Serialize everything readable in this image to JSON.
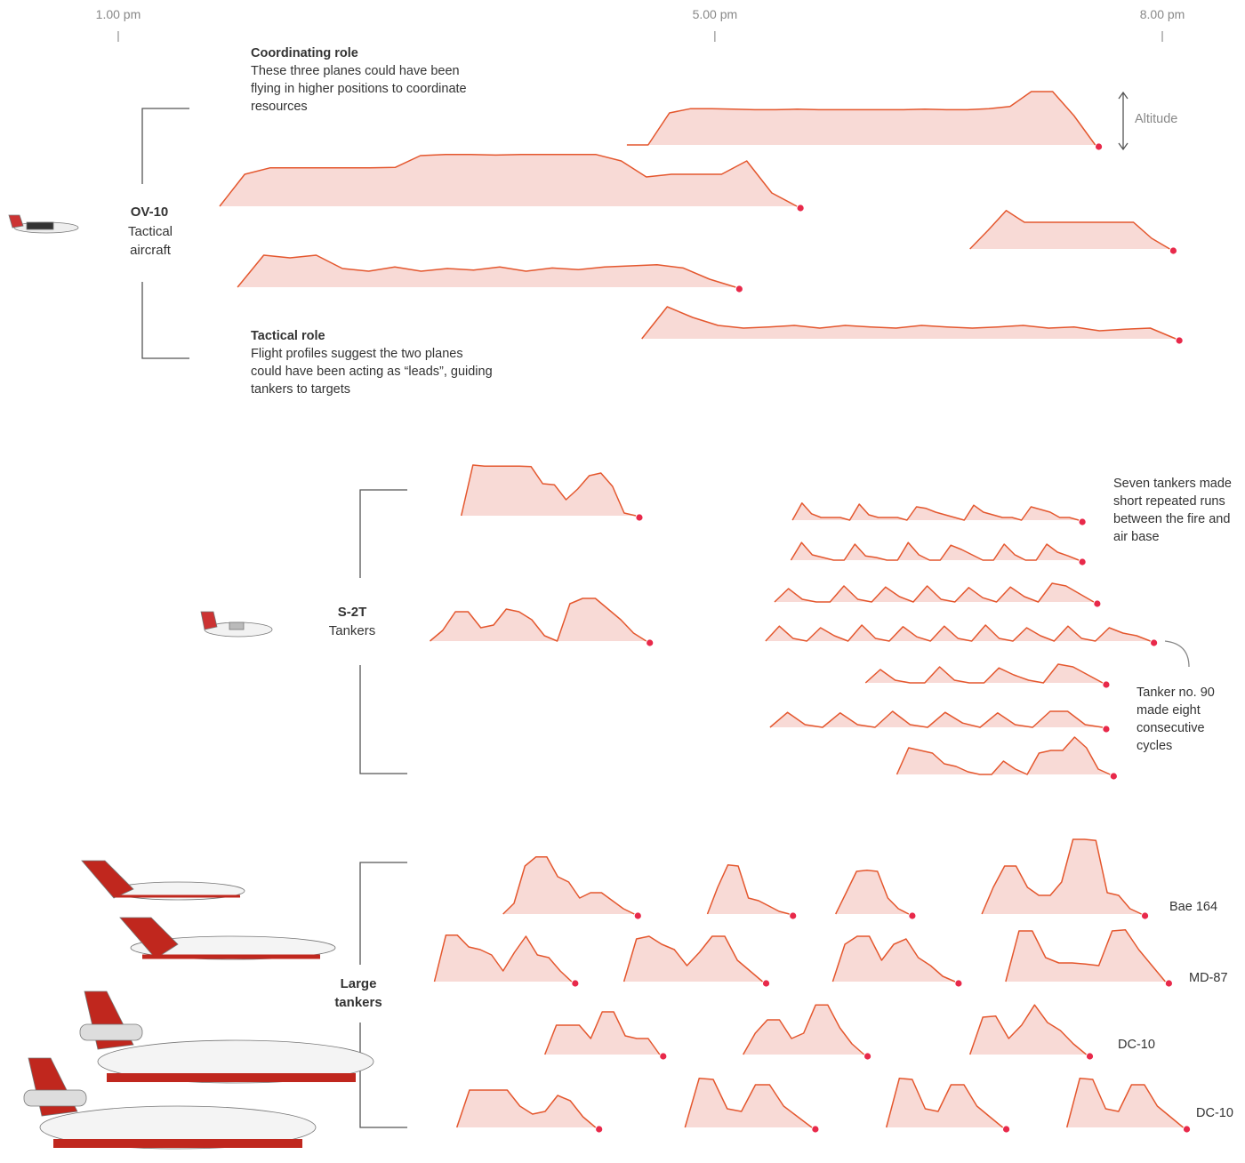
{
  "chart_data": {
    "type": "altitude-profiles",
    "xlim": [
      12.5,
      20.5
    ],
    "xticks": [
      {
        "value": 13,
        "label": "1.00 pm"
      },
      {
        "value": 17,
        "label": "5.00 pm"
      },
      {
        "value": 20,
        "label": "8.00 pm"
      }
    ],
    "axis_note": "Altitude",
    "color": "#e4572e",
    "fill": "#f8dad6",
    "end_color": "#e8294a",
    "annotations": [
      {
        "title": "Coordinating role",
        "text": "These three planes could have been flying in higher positions to coordinate resources"
      },
      {
        "title": "Tactical role",
        "text": "Flight profiles suggest the two planes could have been acting as “leads”, guiding tankers to targets"
      },
      {
        "text": "Seven tankers made short repeated runs between the fire and air base"
      },
      {
        "text": "Tanker no. 90 made eight consecutive cycles"
      }
    ],
    "groups": [
      {
        "name": "OV-10",
        "subtitle": "Tactical aircraft",
        "flights": [
          {
            "start": 16.41,
            "end": 19.55,
            "altitude": [
              0,
              0,
              0.6,
              0.68,
              0.68,
              0.67,
              0.66,
              0.66,
              0.67,
              0.66,
              0.66,
              0.66,
              0.66,
              0.66,
              0.67,
              0.66,
              0.66,
              0.68,
              0.72,
              1.0,
              1.0,
              0.55,
              0
            ]
          },
          {
            "start": 13.68,
            "end": 17.55,
            "altitude": [
              0,
              0.6,
              0.72,
              0.72,
              0.72,
              0.72,
              0.72,
              0.73,
              0.95,
              0.97,
              0.97,
              0.96,
              0.97,
              0.97,
              0.97,
              0.97,
              0.85,
              0.55,
              0.6,
              0.6,
              0.6,
              0.85,
              0.25,
              0
            ]
          },
          {
            "start": 18.71,
            "end": 20.05,
            "altitude": [
              0,
              0.35,
              0.72,
              0.5,
              0.5,
              0.5,
              0.5,
              0.5,
              0.5,
              0.5,
              0.2,
              0
            ]
          },
          {
            "start": 13.8,
            "end": 17.14,
            "altitude": [
              0,
              0.6,
              0.55,
              0.6,
              0.35,
              0.3,
              0.38,
              0.3,
              0.35,
              0.32,
              0.38,
              0.3,
              0.36,
              0.33,
              0.38,
              0.4,
              0.42,
              0.36,
              0.15,
              0
            ]
          },
          {
            "start": 16.51,
            "end": 20.09,
            "altitude": [
              0,
              0.6,
              0.4,
              0.25,
              0.2,
              0.22,
              0.25,
              0.2,
              0.25,
              0.22,
              0.2,
              0.25,
              0.22,
              0.2,
              0.22,
              0.25,
              0.2,
              0.22,
              0.15,
              0.18,
              0.2,
              0
            ]
          }
        ]
      },
      {
        "name": "S-2T",
        "subtitle": "Tankers",
        "flights": [
          {
            "start": 15.3,
            "end": 16.47,
            "altitude": [
              0,
              0.95,
              0.93,
              0.93,
              0.93,
              0.93,
              0.92,
              0.6,
              0.58,
              0.3,
              0.5,
              0.75,
              0.8,
              0.55,
              0.05,
              0
            ]
          },
          {
            "start": 15.09,
            "end": 16.54,
            "altitude": [
              0,
              0.2,
              0.55,
              0.55,
              0.25,
              0.3,
              0.6,
              0.55,
              0.4,
              0.1,
              0,
              0.7,
              0.8,
              0.8,
              0.6,
              0.4,
              0.15,
              0
            ]
          },
          {
            "start": 17.52,
            "end": 19.44,
            "altitude": [
              0,
              0.32,
              0.12,
              0.05,
              0.05,
              0.05,
              0,
              0.3,
              0.1,
              0.05,
              0.05,
              0.05,
              0,
              0.25,
              0.22,
              0.15,
              0.1,
              0.05,
              0,
              0.28,
              0.15,
              0.1,
              0.05,
              0.05,
              0,
              0.25,
              0.2,
              0.15,
              0.05,
              0.05,
              0
            ]
          },
          {
            "start": 17.51,
            "end": 19.44,
            "altitude": [
              0,
              0.33,
              0.1,
              0.05,
              0,
              0,
              0.3,
              0.08,
              0.05,
              0,
              0,
              0.33,
              0.1,
              0,
              0,
              0.28,
              0.2,
              0.1,
              0,
              0,
              0.3,
              0.1,
              0,
              0,
              0.3,
              0.15,
              0.08,
              0
            ]
          },
          {
            "start": 17.4,
            "end": 19.54,
            "altitude": [
              0,
              0.25,
              0.05,
              0,
              0,
              0.3,
              0.05,
              0,
              0.28,
              0.1,
              0,
              0.3,
              0.05,
              0,
              0.27,
              0.08,
              0,
              0.28,
              0.1,
              0,
              0.35,
              0.3,
              0.15,
              0
            ]
          },
          {
            "start": 17.34,
            "end": 19.92,
            "altitude": [
              0,
              0.28,
              0.05,
              0,
              0.25,
              0.1,
              0,
              0.3,
              0.05,
              0,
              0.27,
              0.08,
              0,
              0.28,
              0.05,
              0,
              0.3,
              0.05,
              0,
              0.25,
              0.1,
              0,
              0.28,
              0.05,
              0,
              0.25,
              0.15,
              0.1,
              0
            ]
          },
          {
            "start": 18.01,
            "end": 19.6,
            "altitude": [
              0,
              0.25,
              0.05,
              0,
              0,
              0.3,
              0.05,
              0,
              0,
              0.28,
              0.15,
              0.05,
              0,
              0.35,
              0.3,
              0.15,
              0
            ]
          },
          {
            "start": 17.37,
            "end": 19.6,
            "altitude": [
              0,
              0.28,
              0.05,
              0,
              0.27,
              0.05,
              0,
              0.3,
              0.05,
              0,
              0.28,
              0.08,
              0,
              0.27,
              0.05,
              0,
              0.3,
              0.3,
              0.05,
              0
            ]
          },
          {
            "start": 18.22,
            "end": 19.65,
            "altitude": [
              0,
              0.5,
              0.45,
              0.4,
              0.2,
              0.15,
              0.05,
              0,
              0,
              0.25,
              0.1,
              0,
              0.4,
              0.45,
              0.45,
              0.7,
              0.5,
              0.1,
              0
            ]
          }
        ]
      },
      {
        "name": "Large tankers",
        "rows": [
          {
            "label": "Bae 164",
            "flights": [
              {
                "start": 15.58,
                "end": 16.46,
                "altitude": [
                  0,
                  0.2,
                  0.9,
                  1.07,
                  1.07,
                  0.7,
                  0.6,
                  0.3,
                  0.4,
                  0.4,
                  0.25,
                  0.1,
                  0
                ]
              },
              {
                "start": 16.95,
                "end": 17.5,
                "altitude": [
                  0,
                  0.5,
                  0.92,
                  0.9,
                  0.3,
                  0.25,
                  0.15,
                  0.05,
                  0
                ]
              },
              {
                "start": 17.81,
                "end": 18.3,
                "altitude": [
                  0,
                  0.4,
                  0.8,
                  0.82,
                  0.8,
                  0.3,
                  0.1,
                  0
                ]
              },
              {
                "start": 18.79,
                "end": 19.86,
                "altitude": [
                  0,
                  0.5,
                  0.9,
                  0.9,
                  0.5,
                  0.35,
                  0.35,
                  0.6,
                  1.4,
                  1.4,
                  1.38,
                  0.4,
                  0.35,
                  0.1,
                  0
                ]
              }
            ]
          },
          {
            "label": "MD-87",
            "flights": [
              {
                "start": 15.12,
                "end": 16.04,
                "altitude": [
                  0,
                  0.87,
                  0.87,
                  0.65,
                  0.6,
                  0.5,
                  0.2,
                  0.55,
                  0.85,
                  0.5,
                  0.45,
                  0.2,
                  0
                ]
              },
              {
                "start": 16.39,
                "end": 17.32,
                "altitude": [
                  0,
                  0.8,
                  0.85,
                  0.7,
                  0.6,
                  0.3,
                  0.55,
                  0.85,
                  0.85,
                  0.4,
                  0.2,
                  0
                ]
              },
              {
                "start": 17.79,
                "end": 18.61,
                "altitude": [
                  0,
                  0.7,
                  0.85,
                  0.85,
                  0.4,
                  0.7,
                  0.8,
                  0.45,
                  0.3,
                  0.1,
                  0
                ]
              },
              {
                "start": 18.95,
                "end": 20.02,
                "altitude": [
                  0,
                  0.95,
                  0.95,
                  0.45,
                  0.35,
                  0.35,
                  0.33,
                  0.3,
                  0.95,
                  0.97,
                  0.6,
                  0.3,
                  0
                ]
              }
            ]
          },
          {
            "label": "DC-10",
            "flights": [
              {
                "start": 15.86,
                "end": 16.63,
                "altitude": [
                  0,
                  0.55,
                  0.55,
                  0.55,
                  0.3,
                  0.8,
                  0.8,
                  0.35,
                  0.3,
                  0.3,
                  0
                ]
              },
              {
                "start": 17.19,
                "end": 18.0,
                "altitude": [
                  0,
                  0.4,
                  0.65,
                  0.65,
                  0.3,
                  0.4,
                  0.93,
                  0.93,
                  0.5,
                  0.2,
                  0
                ]
              },
              {
                "start": 18.71,
                "end": 19.49,
                "altitude": [
                  0,
                  0.7,
                  0.72,
                  0.3,
                  0.55,
                  0.93,
                  0.6,
                  0.45,
                  0.2,
                  0
                ]
              }
            ]
          },
          {
            "label": "DC-10",
            "flights": [
              {
                "start": 15.27,
                "end": 16.2,
                "altitude": [
                  0,
                  0.7,
                  0.7,
                  0.7,
                  0.7,
                  0.4,
                  0.25,
                  0.3,
                  0.6,
                  0.5,
                  0.2,
                  0
                ]
              },
              {
                "start": 16.8,
                "end": 17.65,
                "altitude": [
                  0,
                  0.92,
                  0.9,
                  0.35,
                  0.3,
                  0.8,
                  0.8,
                  0.4,
                  0.2,
                  0
                ]
              },
              {
                "start": 18.15,
                "end": 18.93,
                "altitude": [
                  0,
                  0.92,
                  0.9,
                  0.35,
                  0.3,
                  0.8,
                  0.8,
                  0.4,
                  0.2,
                  0
                ]
              },
              {
                "start": 19.36,
                "end": 20.14,
                "altitude": [
                  0,
                  0.92,
                  0.9,
                  0.35,
                  0.3,
                  0.8,
                  0.8,
                  0.4,
                  0.2,
                  0
                ]
              }
            ]
          }
        ]
      }
    ]
  }
}
